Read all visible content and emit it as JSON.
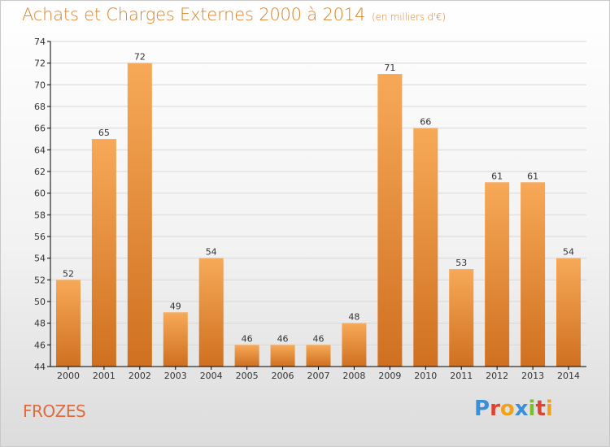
{
  "header": {
    "title": "Achats et Charges Externes 2000 à 2014",
    "subtitle": "(en milliers d'€)"
  },
  "footer": {
    "place": "FROZES",
    "logo": "Proxiti",
    "logo_colors": [
      "#3b8fd6",
      "#e0432f",
      "#f0a21a",
      "#3b8fd6",
      "#7bbf2e",
      "#e0432f",
      "#f0a21a"
    ]
  },
  "colors": {
    "bar_light": "#f7a957",
    "bar_dark": "#cf7020",
    "bar_top": "#f0b070",
    "axis": "#000000",
    "grid": "#d8d8d8"
  },
  "chart_data": {
    "type": "bar",
    "title": "Achats et Charges Externes 2000 à 2014",
    "subtitle": "(en milliers d'€)",
    "categories": [
      "2000",
      "2001",
      "2002",
      "2003",
      "2004",
      "2005",
      "2006",
      "2007",
      "2008",
      "2009",
      "2010",
      "2011",
      "2012",
      "2013",
      "2014"
    ],
    "values": [
      52,
      65,
      72,
      49,
      54,
      46,
      46,
      46,
      48,
      71,
      66,
      53,
      61,
      61,
      54
    ],
    "ylim": [
      44,
      74
    ],
    "yticks": [
      44,
      46,
      48,
      50,
      52,
      54,
      56,
      58,
      60,
      62,
      64,
      66,
      68,
      70,
      72,
      74
    ],
    "xlabel": "",
    "ylabel": "",
    "grid": true,
    "data_labels": true
  }
}
